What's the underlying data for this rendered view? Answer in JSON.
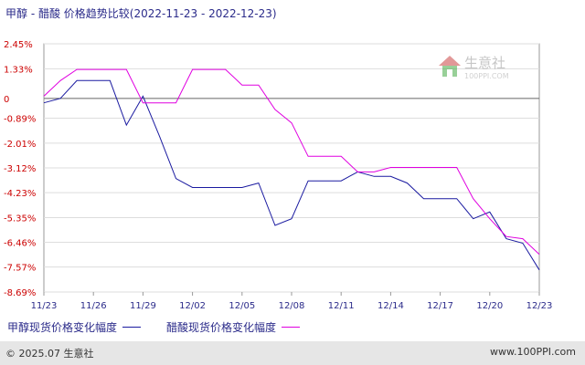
{
  "header": {
    "title": "甲醇 - 醋酸 价格趋势比较(2022-11-23 - 2022-12-23)"
  },
  "watermark": {
    "name": "生意社",
    "url": "100PPI.COM"
  },
  "footer": {
    "copyright": "© 2025.07 生意社",
    "site": "www.100PPI.com"
  },
  "colors": {
    "series_1": "#1a1aa0",
    "series_2": "#e000e0",
    "axis_text": "#cc0000",
    "x_text": "#2b2b8a"
  },
  "chart_data": {
    "type": "line",
    "ylim": [
      -8.69,
      2.45
    ],
    "y_ticks": [
      "2.45%",
      "1.33%",
      "0",
      "-0.89%",
      "-2.01%",
      "-3.12%",
      "-4.23%",
      "-5.35%",
      "-6.46%",
      "-7.57%",
      "-8.69%"
    ],
    "y_tick_values": [
      2.45,
      1.33,
      0,
      -0.89,
      -2.01,
      -3.12,
      -4.23,
      -5.35,
      -6.46,
      -7.57,
      -8.69
    ],
    "x_ticks": [
      "11/23",
      "11/26",
      "11/29",
      "12/02",
      "12/05",
      "12/08",
      "12/11",
      "12/14",
      "12/17",
      "12/20",
      "12/23"
    ],
    "x_tick_days": [
      0,
      3,
      6,
      9,
      12,
      15,
      18,
      21,
      24,
      27,
      30
    ],
    "grid": "horizontal",
    "legend_position": "bottom",
    "series": [
      {
        "name": "甲醇现货价格变化幅度",
        "points": [
          [
            0,
            -0.2
          ],
          [
            1,
            0
          ],
          [
            2,
            0.8
          ],
          [
            3,
            0.8
          ],
          [
            4,
            0.8
          ],
          [
            5,
            -1.2
          ],
          [
            6,
            0.1
          ],
          [
            7,
            -1.7
          ],
          [
            8,
            -3.6
          ],
          [
            9,
            -4.0
          ],
          [
            10,
            -4.0
          ],
          [
            11,
            -4.0
          ],
          [
            12,
            -4.0
          ],
          [
            13,
            -3.8
          ],
          [
            14,
            -5.7
          ],
          [
            15,
            -5.4
          ],
          [
            16,
            -3.7
          ],
          [
            17,
            -3.7
          ],
          [
            18,
            -3.7
          ],
          [
            19,
            -3.3
          ],
          [
            20,
            -3.5
          ],
          [
            21,
            -3.5
          ],
          [
            22,
            -3.8
          ],
          [
            23,
            -4.5
          ],
          [
            24,
            -4.5
          ],
          [
            25,
            -4.5
          ],
          [
            26,
            -5.4
          ],
          [
            27,
            -5.1
          ],
          [
            28,
            -6.3
          ],
          [
            29,
            -6.5
          ],
          [
            30,
            -7.7
          ]
        ]
      },
      {
        "name": "醋酸现货价格变化幅度",
        "points": [
          [
            0,
            0.1
          ],
          [
            1,
            0.8
          ],
          [
            2,
            1.3
          ],
          [
            3,
            1.3
          ],
          [
            4,
            1.3
          ],
          [
            5,
            1.3
          ],
          [
            6,
            -0.2
          ],
          [
            7,
            -0.2
          ],
          [
            8,
            -0.2
          ],
          [
            9,
            1.3
          ],
          [
            10,
            1.3
          ],
          [
            11,
            1.3
          ],
          [
            12,
            0.6
          ],
          [
            13,
            0.6
          ],
          [
            14,
            -0.5
          ],
          [
            15,
            -1.1
          ],
          [
            16,
            -2.6
          ],
          [
            17,
            -2.6
          ],
          [
            18,
            -2.6
          ],
          [
            19,
            -3.3
          ],
          [
            20,
            -3.3
          ],
          [
            21,
            -3.1
          ],
          [
            22,
            -3.1
          ],
          [
            23,
            -3.1
          ],
          [
            24,
            -3.1
          ],
          [
            25,
            -3.1
          ],
          [
            26,
            -4.5
          ],
          [
            27,
            -5.4
          ],
          [
            28,
            -6.2
          ],
          [
            29,
            -6.3
          ],
          [
            30,
            -7.0
          ]
        ]
      }
    ]
  }
}
